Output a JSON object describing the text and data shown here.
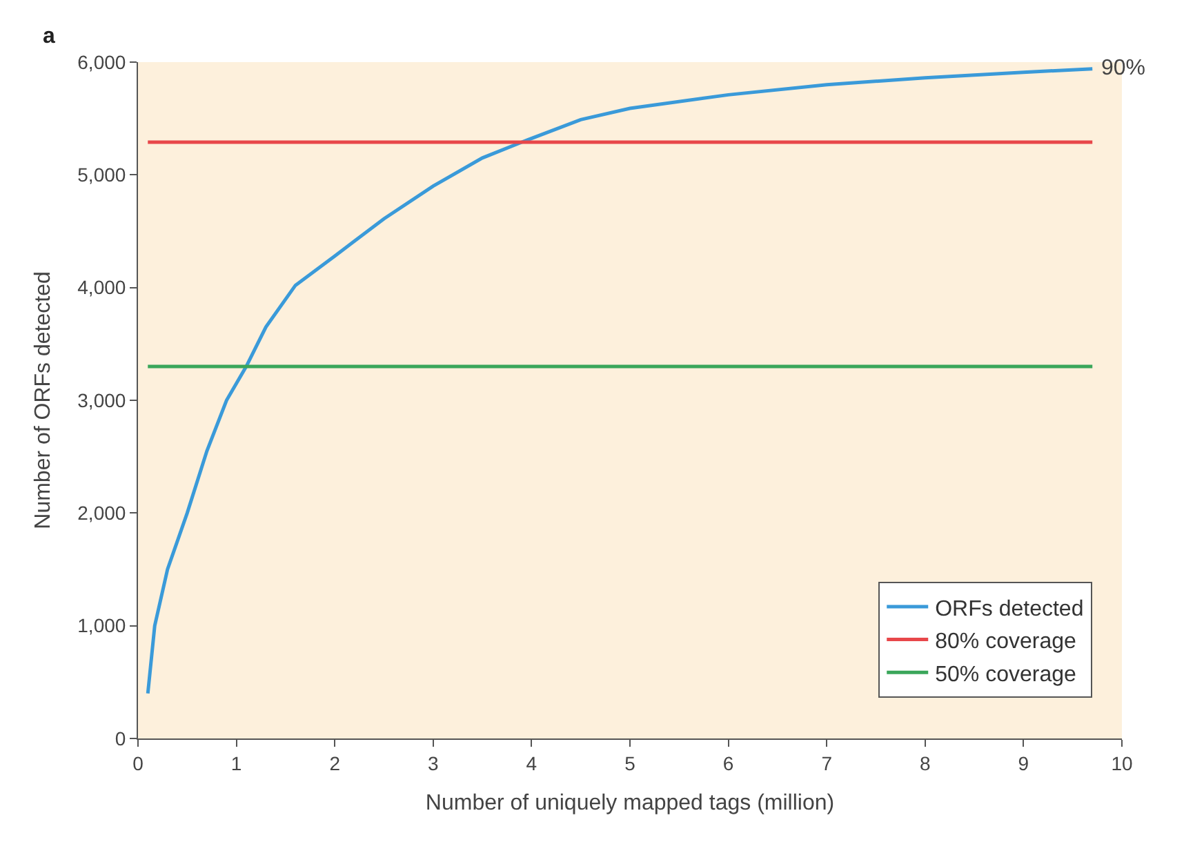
{
  "chart_data": {
    "type": "line",
    "xlabel": "Number of uniquely mapped tags (million)",
    "ylabel": "Number of ORFs detected",
    "xlim": [
      0,
      10
    ],
    "ylim": [
      0,
      6000
    ],
    "xticks": [
      0,
      1,
      2,
      3,
      4,
      5,
      6,
      7,
      8,
      9,
      10
    ],
    "yticks": [
      0,
      {
        "value": 1000,
        "label": "1,000"
      },
      {
        "value": 2000,
        "label": "2,000"
      },
      {
        "value": 3000,
        "label": "3,000"
      },
      {
        "value": 4000,
        "label": "4,000"
      },
      {
        "value": 5000,
        "label": "5,000"
      },
      {
        "value": 6000,
        "label": "6,000"
      }
    ],
    "grid": false,
    "legend": "bottom right",
    "marker": "none",
    "line_style": "solid",
    "series": [
      {
        "name": "ORFs detected",
        "color": "#3a9ad9",
        "x": [
          0.1,
          0.17,
          0.3,
          0.5,
          0.7,
          0.9,
          1.1,
          1.3,
          1.6,
          2.0,
          2.5,
          3.0,
          3.5,
          3.9,
          4.5,
          5.0,
          6.0,
          7.0,
          8.0,
          9.0,
          9.7
        ],
        "values": [
          400,
          1000,
          1500,
          2000,
          2550,
          3000,
          3300,
          3650,
          4020,
          4280,
          4610,
          4900,
          5150,
          5290,
          5490,
          5590,
          5710,
          5800,
          5860,
          5910,
          5940
        ]
      },
      {
        "name": "80% coverage",
        "color": "#e8474a",
        "x": [
          0.1,
          9.7
        ],
        "values": [
          5290,
          5290
        ]
      },
      {
        "name": "50% coverage",
        "color": "#3aa65a",
        "x": [
          0.1,
          9.7
        ],
        "values": [
          3300,
          3300
        ]
      }
    ],
    "annotations": [
      "a",
      {
        "text": "90%",
        "x": 9.7,
        "y": 5940
      }
    ]
  }
}
